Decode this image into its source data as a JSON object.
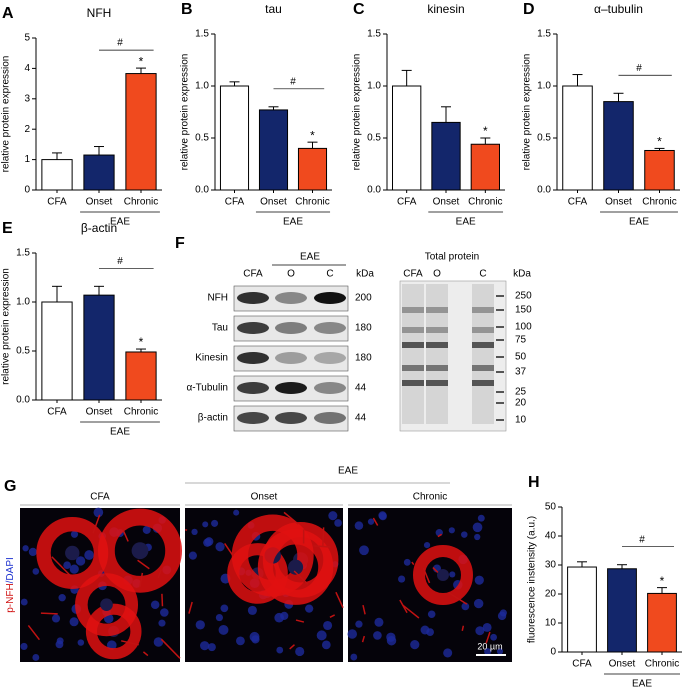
{
  "chart_data": [
    {
      "type": "bar",
      "label": "A",
      "title": "NFH",
      "ylabel": "relative protein expression",
      "categories": [
        "CFA",
        "Onset",
        "Chronic"
      ],
      "values": [
        1.0,
        1.15,
        3.83
      ],
      "errors": [
        0.22,
        0.28,
        0.18
      ],
      "colors": [
        "#ffffff",
        "#13266b",
        "#f04a1e"
      ],
      "group_label": "EAE",
      "annotations": [
        "#",
        "*"
      ],
      "ylim": [
        0,
        5
      ],
      "yticks": [
        0,
        1,
        2,
        3,
        4,
        5
      ]
    },
    {
      "type": "bar",
      "label": "B",
      "title": "tau",
      "ylabel": "relative protein expression",
      "categories": [
        "CFA",
        "Onset",
        "Chronic"
      ],
      "values": [
        1.0,
        0.77,
        0.4
      ],
      "errors": [
        0.04,
        0.03,
        0.06
      ],
      "colors": [
        "#ffffff",
        "#13266b",
        "#f04a1e"
      ],
      "group_label": "EAE",
      "annotations": [
        "#",
        "*"
      ],
      "ylim": [
        0,
        1.5
      ],
      "yticks": [
        {
          "value": 0,
          "label": "0.0"
        },
        0.5,
        {
          "value": 1,
          "label": "1.0"
        },
        1.5
      ]
    },
    {
      "type": "bar",
      "label": "C",
      "title": "kinesin",
      "ylabel": "relative protein expression",
      "categories": [
        "CFA",
        "Onset",
        "Chronic"
      ],
      "values": [
        1.0,
        0.65,
        0.44
      ],
      "errors": [
        0.15,
        0.15,
        0.06
      ],
      "colors": [
        "#ffffff",
        "#13266b",
        "#f04a1e"
      ],
      "group_label": "EAE",
      "annotations": [
        "*"
      ],
      "ylim": [
        0,
        1.5
      ],
      "yticks": [
        {
          "value": 0,
          "label": "0.0"
        },
        0.5,
        {
          "value": 1,
          "label": "1.0"
        },
        1.5
      ]
    },
    {
      "type": "bar",
      "label": "D",
      "title": "α–tubulin",
      "ylabel": "relative protein expression",
      "categories": [
        "CFA",
        "Onset",
        "Chronic"
      ],
      "values": [
        1.0,
        0.85,
        0.38
      ],
      "errors": [
        0.11,
        0.08,
        0.02
      ],
      "colors": [
        "#ffffff",
        "#13266b",
        "#f04a1e"
      ],
      "group_label": "EAE",
      "annotations": [
        "#",
        "*"
      ],
      "ylim": [
        0,
        1.5
      ],
      "yticks": [
        {
          "value": 0,
          "label": "0.0"
        },
        0.5,
        {
          "value": 1,
          "label": "1.0"
        },
        1.5
      ]
    },
    {
      "type": "bar",
      "label": "E",
      "title": "β-actin",
      "ylabel": "relative protein expression",
      "categories": [
        "CFA",
        "Onset",
        "Chronic"
      ],
      "values": [
        1.0,
        1.07,
        0.49
      ],
      "errors": [
        0.16,
        0.09,
        0.03
      ],
      "colors": [
        "#ffffff",
        "#13266b",
        "#f04a1e"
      ],
      "group_label": "EAE",
      "annotations": [
        "#",
        "*"
      ],
      "ylim": [
        0,
        1.5
      ],
      "yticks": [
        {
          "value": 0,
          "label": "0.0"
        },
        0.5,
        {
          "value": 1,
          "label": "1.0"
        },
        1.5
      ]
    },
    {
      "type": "bar",
      "label": "H",
      "title": null,
      "ylabel": "fluorescence instensity (a.u.)",
      "categories": [
        "CFA",
        "Onset",
        "Chronic"
      ],
      "values": [
        29.3,
        28.7,
        20.2
      ],
      "errors": [
        1.8,
        1.4,
        2.0
      ],
      "colors": [
        "#ffffff",
        "#13266b",
        "#f04a1e"
      ],
      "group_label": "EAE",
      "annotations": [
        "#",
        "*"
      ],
      "ylim": [
        0,
        50
      ],
      "yticks": [
        0,
        10,
        20,
        30,
        40,
        50
      ]
    }
  ],
  "blot": {
    "label": "F",
    "group": "EAE",
    "lanes": [
      "CFA",
      "O",
      "C"
    ],
    "unit": "kDa",
    "rows": [
      {
        "name": "NFH",
        "kda": 200
      },
      {
        "name": "Tau",
        "kda": 180
      },
      {
        "name": "Kinesin",
        "kda": 180
      },
      {
        "name": "α-Tubulin",
        "kda": 44
      },
      {
        "name": "β-actin",
        "kda": 44
      }
    ]
  },
  "total_protein": {
    "title": "Total protein",
    "lanes": [
      "CFA",
      "O",
      "C"
    ],
    "unit": "kDa",
    "markers": [
      250,
      150,
      100,
      75,
      50,
      37,
      25,
      20,
      10
    ]
  },
  "micrographs": {
    "label": "G",
    "group": "EAE",
    "columns": [
      "CFA",
      "Onset",
      "Chronic"
    ],
    "stain": [
      "p-NFH",
      "/DAPI"
    ],
    "scale_bar": "20 µm"
  }
}
